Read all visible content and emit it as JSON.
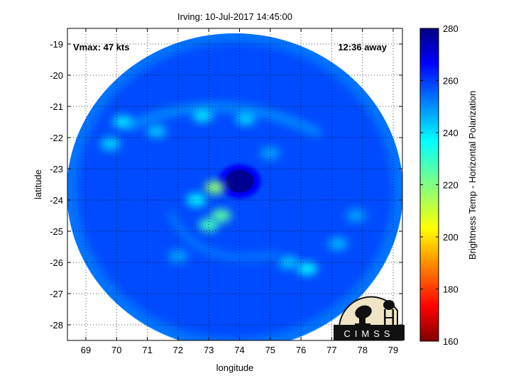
{
  "chart_data": {
    "type": "heatmap",
    "title": "Irving: 10-Jul-2017 14:45:00",
    "xlabel": "longitude",
    "ylabel": "latitude",
    "xlim": [
      68.4,
      79.3
    ],
    "ylim": [
      -28.5,
      -18.5
    ],
    "xticks": [
      69,
      70,
      71,
      72,
      73,
      74,
      75,
      76,
      77,
      78,
      79
    ],
    "yticks": [
      -19,
      -20,
      -21,
      -22,
      -23,
      -24,
      -25,
      -26,
      -27,
      -28
    ],
    "grid": true,
    "annotations": {
      "vmax": "Vmax: 47 kts",
      "time_away": "12:36 away"
    },
    "colorbar": {
      "label": "Brightness Temp - Horizontal Polarization",
      "min": 160,
      "max": 280,
      "ticks": [
        280,
        260,
        240,
        220,
        200,
        180,
        160
      ],
      "colormap": "jet"
    },
    "swath": {
      "center_lon": 73.85,
      "center_lat": -23.7,
      "base_value": 258
    },
    "features": [
      {
        "kind": "eye",
        "lon": 74.0,
        "lat": -23.4,
        "value": 272
      },
      {
        "kind": "warm-band",
        "lon": 73.4,
        "lat": -24.5,
        "value": 225
      },
      {
        "kind": "warm-band",
        "lon": 73.2,
        "lat": -23.6,
        "value": 218
      },
      {
        "kind": "warm-band",
        "lon": 73.0,
        "lat": -24.8,
        "value": 228
      },
      {
        "kind": "warm-band",
        "lon": 72.6,
        "lat": -24.0,
        "value": 238
      },
      {
        "kind": "warm-band",
        "lon": 72.8,
        "lat": -21.3,
        "value": 240
      },
      {
        "kind": "warm-band",
        "lon": 74.2,
        "lat": -21.4,
        "value": 242
      },
      {
        "kind": "warm-band",
        "lon": 71.3,
        "lat": -21.8,
        "value": 244
      },
      {
        "kind": "warm-band",
        "lon": 70.2,
        "lat": -21.5,
        "value": 240
      },
      {
        "kind": "warm-band",
        "lon": 69.8,
        "lat": -22.2,
        "value": 242
      },
      {
        "kind": "warm-band",
        "lon": 76.2,
        "lat": -26.2,
        "value": 238
      },
      {
        "kind": "warm-band",
        "lon": 75.6,
        "lat": -26.0,
        "value": 244
      },
      {
        "kind": "warm-band",
        "lon": 77.2,
        "lat": -25.4,
        "value": 246
      },
      {
        "kind": "warm-band",
        "lon": 72.0,
        "lat": -25.8,
        "value": 248
      },
      {
        "kind": "warm-band",
        "lon": 75.0,
        "lat": -22.5,
        "value": 248
      },
      {
        "kind": "warm-band",
        "lon": 77.8,
        "lat": -24.5,
        "value": 248
      }
    ]
  },
  "logo": {
    "text": "CIMSS"
  }
}
